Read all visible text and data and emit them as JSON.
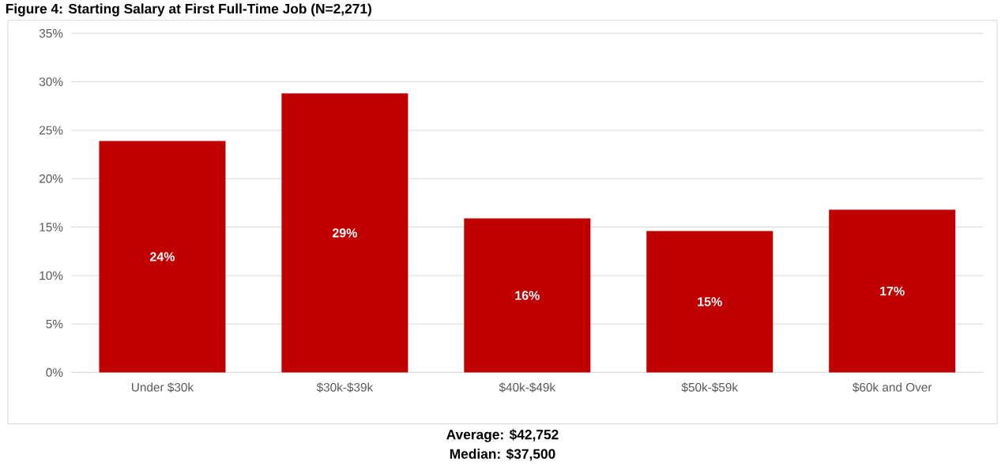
{
  "chart_data": {
    "type": "bar",
    "title": "Figure 4: Starting Salary at First Full-Time Job (N=2,271)",
    "categories": [
      "Under $30k",
      "$30k-$39k",
      "$40k-$49k",
      "$50k-$59k",
      "$60k and Over"
    ],
    "values": [
      23.9,
      28.8,
      15.9,
      14.6,
      16.8
    ],
    "value_labels": [
      "24%",
      "29%",
      "16%",
      "15%",
      "17%"
    ],
    "color": "#c00000",
    "ylim": [
      0,
      35
    ],
    "yticks": [
      {
        "value": 0,
        "label": "0%"
      },
      {
        "value": 5,
        "label": "5%"
      },
      {
        "value": 10,
        "label": "10%"
      },
      {
        "value": 15,
        "label": "15%"
      },
      {
        "value": 20,
        "label": "20%"
      },
      {
        "value": 25,
        "label": "25%"
      },
      {
        "value": 30,
        "label": "30%"
      },
      {
        "value": 35,
        "label": "35%"
      }
    ],
    "grid": "y",
    "annotations": [
      "Average: $42,752",
      "Median: $37,500"
    ]
  }
}
